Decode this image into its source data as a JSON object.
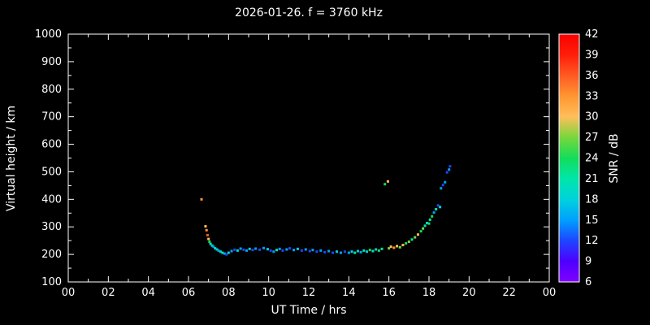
{
  "chart_data": {
    "type": "scatter",
    "title": "2026-01-26. f = 3760 kHz",
    "xlabel": "UT Time / hrs",
    "ylabel": "Virtual height / km",
    "xlim": [
      0,
      24
    ],
    "ylim": [
      100,
      1000
    ],
    "grid": false,
    "background": "#000000",
    "frame_color": "#ffffff",
    "x_ticks": {
      "values": [
        0,
        2,
        4,
        6,
        8,
        10,
        12,
        14,
        16,
        18,
        20,
        22,
        24
      ],
      "labels": [
        "00",
        "02",
        "04",
        "06",
        "08",
        "10",
        "12",
        "14",
        "16",
        "18",
        "20",
        "22",
        "00"
      ]
    },
    "y_ticks": {
      "values": [
        100,
        200,
        300,
        400,
        500,
        600,
        700,
        800,
        900,
        1000
      ],
      "labels": [
        "100",
        "200",
        "300",
        "400",
        "500",
        "600",
        "700",
        "800",
        "900",
        "1000"
      ]
    },
    "colorbar": {
      "label": "SNR / dB",
      "min": 6,
      "max": 42,
      "ticks": [
        6,
        9,
        12,
        15,
        18,
        21,
        24,
        27,
        30,
        33,
        36,
        39,
        42
      ],
      "stops": [
        {
          "value": 6,
          "color": "#8000ff"
        },
        {
          "value": 9,
          "color": "#4d00ff"
        },
        {
          "value": 12,
          "color": "#1e46ff"
        },
        {
          "value": 15,
          "color": "#00a0ff"
        },
        {
          "value": 18,
          "color": "#00d2dc"
        },
        {
          "value": 21,
          "color": "#00e6aa"
        },
        {
          "value": 24,
          "color": "#14dc5a"
        },
        {
          "value": 27,
          "color": "#78d73c"
        },
        {
          "value": 30,
          "color": "#ffbe5a"
        },
        {
          "value": 33,
          "color": "#ff9632"
        },
        {
          "value": 36,
          "color": "#ff5a23"
        },
        {
          "value": 39,
          "color": "#ff1e0a"
        },
        {
          "value": 42,
          "color": "#fa0000"
        }
      ]
    },
    "points_format": [
      "ut_hours",
      "virtual_height_km",
      "snr_db"
    ],
    "points": [
      [
        6.65,
        400,
        33
      ],
      [
        6.85,
        302,
        30
      ],
      [
        6.9,
        288,
        33
      ],
      [
        6.95,
        270,
        36
      ],
      [
        7.0,
        256,
        30
      ],
      [
        7.05,
        246,
        24
      ],
      [
        7.1,
        238,
        21
      ],
      [
        7.18,
        232,
        18
      ],
      [
        7.25,
        228,
        15
      ],
      [
        7.33,
        222,
        21
      ],
      [
        7.42,
        218,
        18
      ],
      [
        7.5,
        214,
        15
      ],
      [
        7.6,
        210,
        18
      ],
      [
        7.7,
        206,
        21
      ],
      [
        7.8,
        203,
        15
      ],
      [
        7.9,
        200,
        12
      ],
      [
        8.0,
        206,
        18
      ],
      [
        8.15,
        212,
        15
      ],
      [
        8.3,
        217,
        12
      ],
      [
        8.45,
        214,
        18
      ],
      [
        8.6,
        221,
        15
      ],
      [
        8.75,
        217,
        12
      ],
      [
        8.9,
        214,
        15
      ],
      [
        9.05,
        220,
        18
      ],
      [
        9.2,
        216,
        12
      ],
      [
        9.35,
        221,
        15
      ],
      [
        9.55,
        217,
        12
      ],
      [
        9.75,
        223,
        15
      ],
      [
        9.95,
        219,
        18
      ],
      [
        10.1,
        214,
        12
      ],
      [
        10.25,
        210,
        15
      ],
      [
        10.4,
        216,
        21
      ],
      [
        10.55,
        220,
        15
      ],
      [
        10.7,
        214,
        12
      ],
      [
        10.9,
        218,
        15
      ],
      [
        11.05,
        222,
        12
      ],
      [
        11.25,
        216,
        15
      ],
      [
        11.45,
        220,
        18
      ],
      [
        11.65,
        214,
        12
      ],
      [
        11.85,
        218,
        15
      ],
      [
        12.05,
        212,
        12
      ],
      [
        12.2,
        216,
        15
      ],
      [
        12.4,
        210,
        12
      ],
      [
        12.6,
        214,
        15
      ],
      [
        12.8,
        208,
        12
      ],
      [
        13.0,
        212,
        15
      ],
      [
        13.2,
        206,
        12
      ],
      [
        13.4,
        210,
        18
      ],
      [
        13.6,
        206,
        15
      ],
      [
        13.8,
        210,
        12
      ],
      [
        14.0,
        206,
        15
      ],
      [
        14.15,
        210,
        18
      ],
      [
        14.3,
        206,
        21
      ],
      [
        14.45,
        212,
        18
      ],
      [
        14.6,
        208,
        15
      ],
      [
        14.75,
        214,
        21
      ],
      [
        14.9,
        210,
        18
      ],
      [
        15.05,
        216,
        24
      ],
      [
        15.2,
        212,
        21
      ],
      [
        15.35,
        218,
        18
      ],
      [
        15.5,
        214,
        24
      ],
      [
        15.65,
        220,
        21
      ],
      [
        15.8,
        455,
        24
      ],
      [
        15.95,
        465,
        30
      ],
      [
        16.0,
        222,
        27
      ],
      [
        16.1,
        228,
        30
      ],
      [
        16.25,
        224,
        33
      ],
      [
        16.4,
        230,
        30
      ],
      [
        16.55,
        226,
        27
      ],
      [
        16.7,
        234,
        30
      ],
      [
        16.85,
        240,
        24
      ],
      [
        17.0,
        246,
        27
      ],
      [
        17.15,
        254,
        21
      ],
      [
        17.3,
        262,
        27
      ],
      [
        17.45,
        272,
        30
      ],
      [
        17.6,
        284,
        24
      ],
      [
        17.7,
        294,
        27
      ],
      [
        17.8,
        304,
        21
      ],
      [
        17.9,
        314,
        18
      ],
      [
        18.0,
        312,
        24
      ],
      [
        18.05,
        326,
        21
      ],
      [
        18.15,
        338,
        24
      ],
      [
        18.25,
        352,
        15
      ],
      [
        18.35,
        364,
        21
      ],
      [
        18.45,
        378,
        12
      ],
      [
        18.55,
        372,
        18
      ],
      [
        18.6,
        440,
        15
      ],
      [
        18.7,
        452,
        12
      ],
      [
        18.8,
        462,
        15
      ],
      [
        18.9,
        498,
        12
      ],
      [
        19.0,
        508,
        15
      ],
      [
        19.05,
        520,
        12
      ]
    ]
  }
}
